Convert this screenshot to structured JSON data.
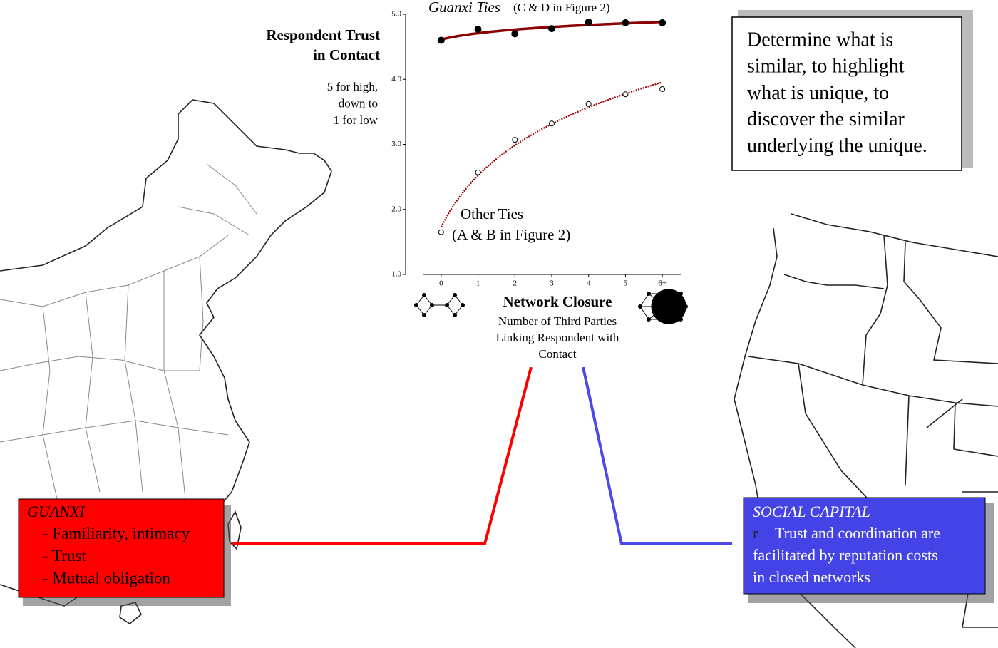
{
  "chart_data": {
    "type": "scatter",
    "y_label": [
      "Respondent Trust",
      "in Contact"
    ],
    "y_note": [
      "5 for high,",
      "down to",
      "1 for low"
    ],
    "x_label": "Network Closure",
    "x_sublabel": [
      "Number of Third Parties",
      "Linking Respondent with",
      "Contact"
    ],
    "x": [
      0,
      1,
      2,
      3,
      4,
      5,
      6
    ],
    "series": [
      {
        "name": "Guanxi Ties",
        "note": "(C & D in Figure 2)",
        "color": "#000000",
        "trend_color": "#8b0000",
        "filled": true,
        "values": [
          4.6,
          4.77,
          4.7,
          4.78,
          4.88,
          4.87,
          4.87
        ]
      },
      {
        "name": "Other Ties",
        "note": "(A & B in Figure 2)",
        "color": "#000000",
        "trend_color": "#a00000",
        "filled": false,
        "values": [
          1.65,
          2.57,
          3.07,
          3.32,
          3.62,
          3.77,
          3.85
        ]
      }
    ],
    "xlim": [
      -0.5,
      6.5
    ],
    "ylim": [
      1,
      5
    ],
    "xticks": [
      0,
      1,
      2,
      3,
      4,
      5,
      {
        "value": 6,
        "label": "6+"
      }
    ],
    "yticks": [
      {
        "value": 1,
        "label": "1.0"
      },
      {
        "value": 2,
        "label": "2.0"
      },
      {
        "value": 3,
        "label": "3.0"
      },
      {
        "value": 4,
        "label": "4.0"
      },
      {
        "value": 5,
        "label": "5.0"
      }
    ]
  },
  "quote": [
    "Determine what is",
    "similar, to highlight",
    "what is unique, to",
    "discover the similar",
    "underlying the unique."
  ],
  "guanxi_box": {
    "title": "GUANXI",
    "items": [
      "- Familiarity, intimacy",
      "- Trust",
      "- Mutual obligation"
    ]
  },
  "social_capital_box": {
    "title": "SOCIAL CAPITAL",
    "marker": "r",
    "lines": [
      "Trust and coordination are",
      "facilitated by reputation costs",
      "in closed networks"
    ]
  }
}
